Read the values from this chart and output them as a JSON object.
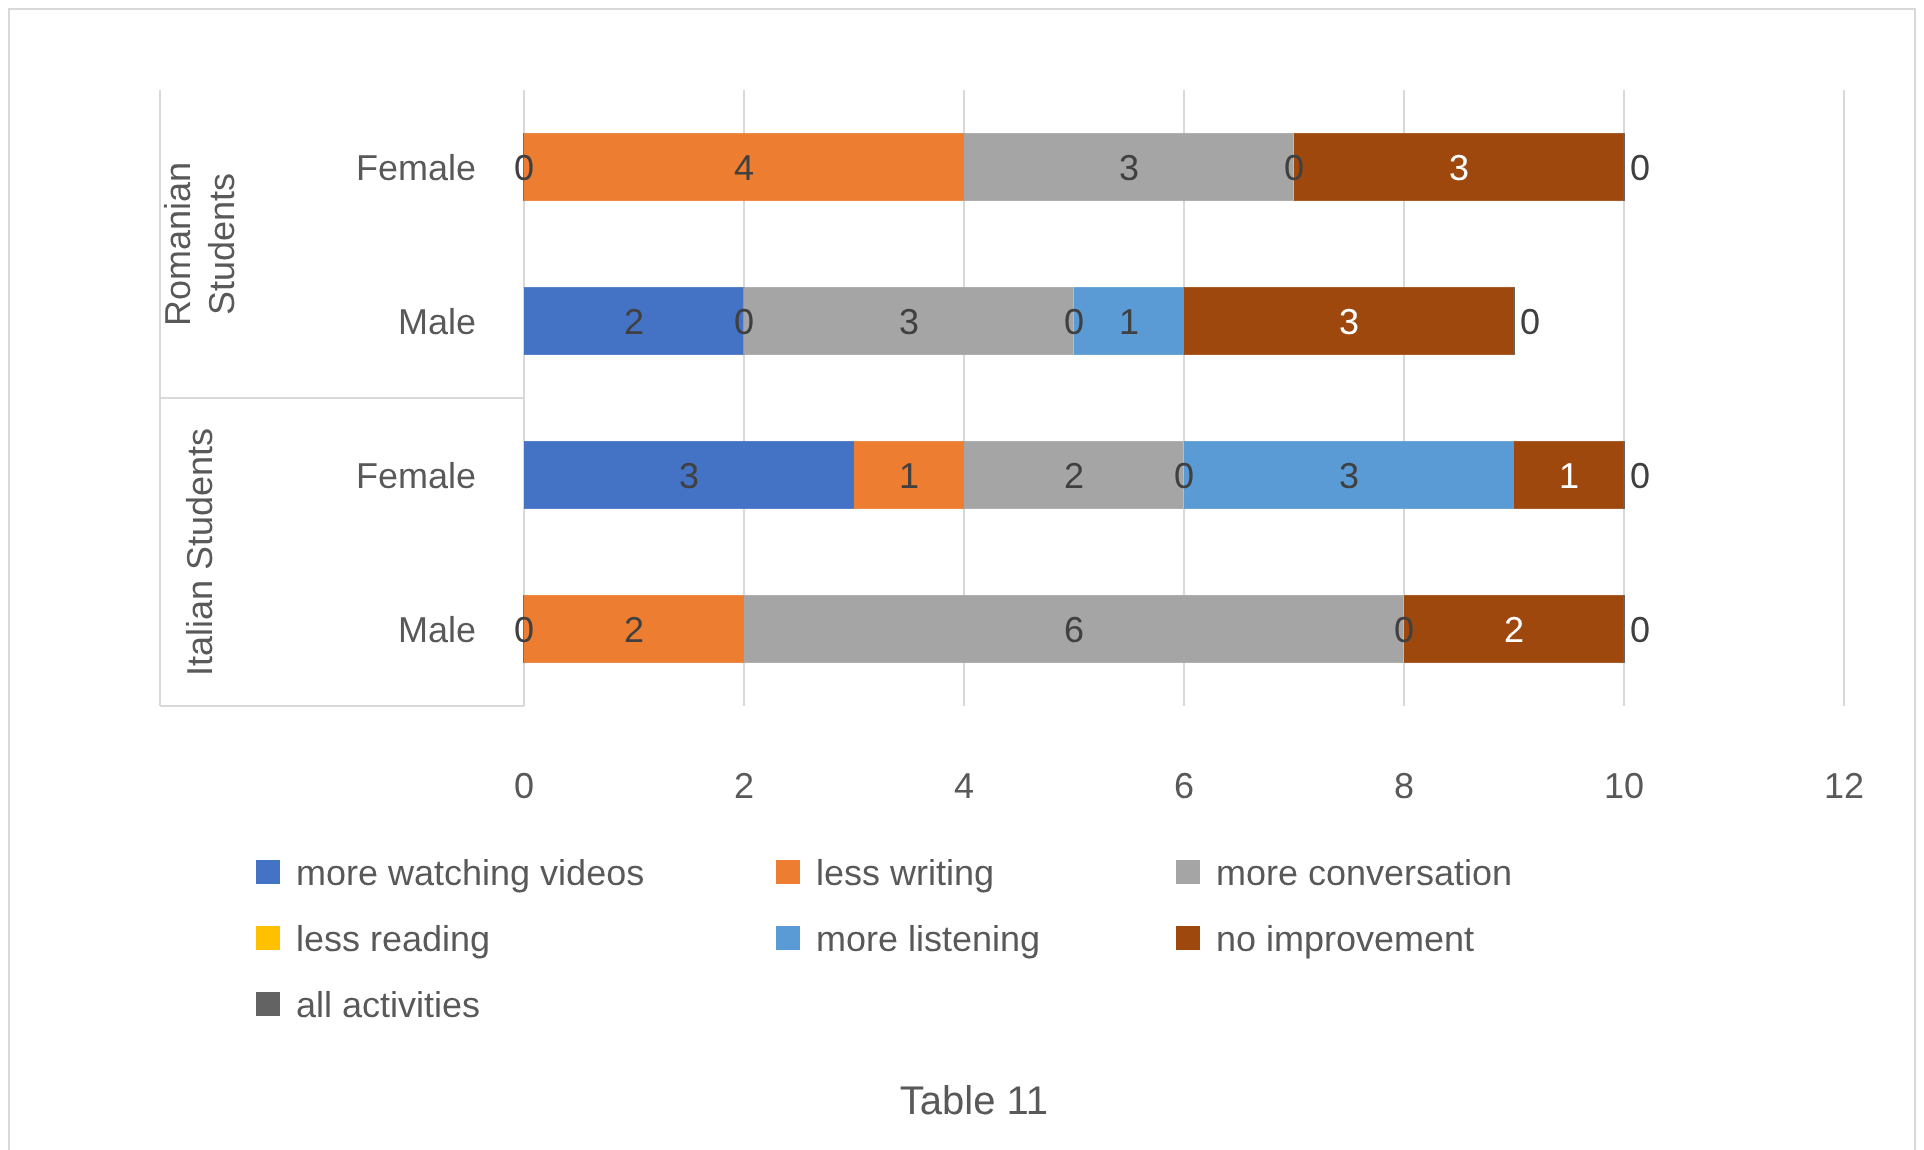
{
  "chart_data": {
    "type": "bar",
    "orientation": "horizontal",
    "stacked": true,
    "title": "Table 11",
    "categories": [
      "Female",
      "Male",
      "Female",
      "Male"
    ],
    "annotations": [
      "Romanian Students",
      "Italian Students"
    ],
    "series": [
      {
        "name": "more watching videos",
        "color": "#4472c4",
        "values": [
          0,
          2,
          3,
          0
        ]
      },
      {
        "name": "less writing",
        "color": "#ed7d31",
        "values": [
          4,
          0,
          1,
          2
        ]
      },
      {
        "name": "more conversation",
        "color": "#a5a5a5",
        "values": [
          3,
          3,
          2,
          6
        ]
      },
      {
        "name": "less reading",
        "color": "#ffc000",
        "values": [
          0,
          0,
          0,
          0
        ]
      },
      {
        "name": "more listening",
        "color": "#5b9bd5",
        "values": [
          null,
          1,
          3,
          null
        ]
      },
      {
        "name": "no improvement",
        "color": "#9e480e",
        "values": [
          3,
          3,
          1,
          2
        ]
      },
      {
        "name": "all activities",
        "color": "#636363",
        "values": [
          0,
          0,
          0,
          0
        ]
      }
    ],
    "xlim": [
      0,
      12
    ],
    "xticks": [
      0,
      2,
      4,
      6,
      8,
      10,
      12
    ],
    "grid": "x",
    "legend": "bottom",
    "data_labels": true
  }
}
